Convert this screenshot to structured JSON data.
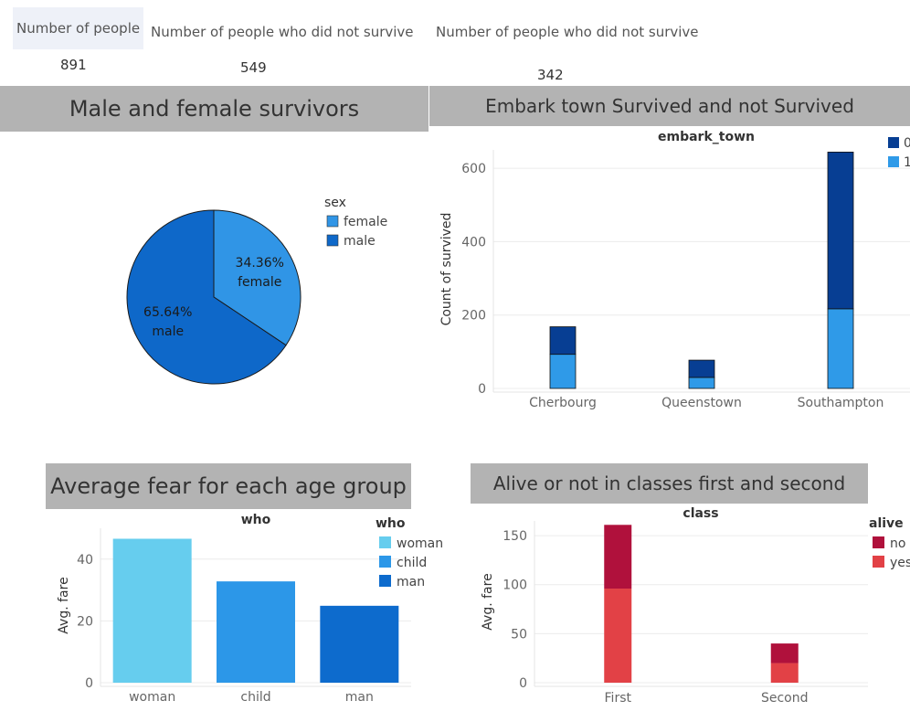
{
  "kpis": [
    {
      "label": "Number of people",
      "value": "891"
    },
    {
      "label": "Number of people who did not survive",
      "value": "549"
    },
    {
      "label": "Number of people who did not survive",
      "value": "342"
    }
  ],
  "banners": {
    "sex": "Male and female survivors",
    "embark": "Embark town Survived and not Survived",
    "who": "Average fear for each age group",
    "class": "Alive or not in classes first and second"
  },
  "chart_data": [
    {
      "type": "pie",
      "legend_title": "sex",
      "categories": [
        "female",
        "male"
      ],
      "values": [
        34.36,
        65.64
      ],
      "labels": [
        "34.36%",
        "65.64%"
      ],
      "colors": [
        "#3095e6",
        "#0e68c9"
      ],
      "legend": "right"
    },
    {
      "type": "bar",
      "stacked": true,
      "title": "embark_town",
      "ylabel": "Count of survived",
      "categories": [
        "Cherbourg",
        "Queenstown",
        "Southampton"
      ],
      "series": [
        {
          "name": "1",
          "values": [
            93,
            30,
            217
          ],
          "color": "#2f9ae8"
        },
        {
          "name": "0",
          "values": [
            75,
            47,
            427
          ],
          "color": "#073e93"
        }
      ],
      "legend_order": [
        "0",
        "1"
      ],
      "yticks": [
        0,
        200,
        400,
        600
      ],
      "ylim": [
        0,
        650
      ],
      "grid": true,
      "legend": "top-right"
    },
    {
      "type": "bar",
      "title": "who",
      "legend_title": "who",
      "ylabel": "Avg. fare",
      "categories": [
        "woman",
        "child",
        "man"
      ],
      "values": [
        46.6,
        32.8,
        24.9
      ],
      "colors": [
        "#66cdee",
        "#2c97e8",
        "#0d6bcd"
      ],
      "yticks": [
        0,
        20,
        40
      ],
      "ylim": [
        0,
        50
      ],
      "grid": true,
      "legend": "top-right"
    },
    {
      "type": "bar",
      "stacked": true,
      "title": "class",
      "legend_title": "alive",
      "ylabel": "Avg. fare",
      "categories": [
        "First",
        "Second"
      ],
      "series": [
        {
          "name": "yes",
          "values": [
            96,
            20
          ],
          "color": "#e24146"
        },
        {
          "name": "no",
          "values": [
            65,
            20
          ],
          "color": "#b0113c"
        }
      ],
      "legend_order": [
        "no",
        "yes"
      ],
      "yticks": [
        0,
        50,
        100,
        150
      ],
      "ylim": [
        0,
        165
      ],
      "grid": true,
      "legend": "top-right"
    }
  ]
}
